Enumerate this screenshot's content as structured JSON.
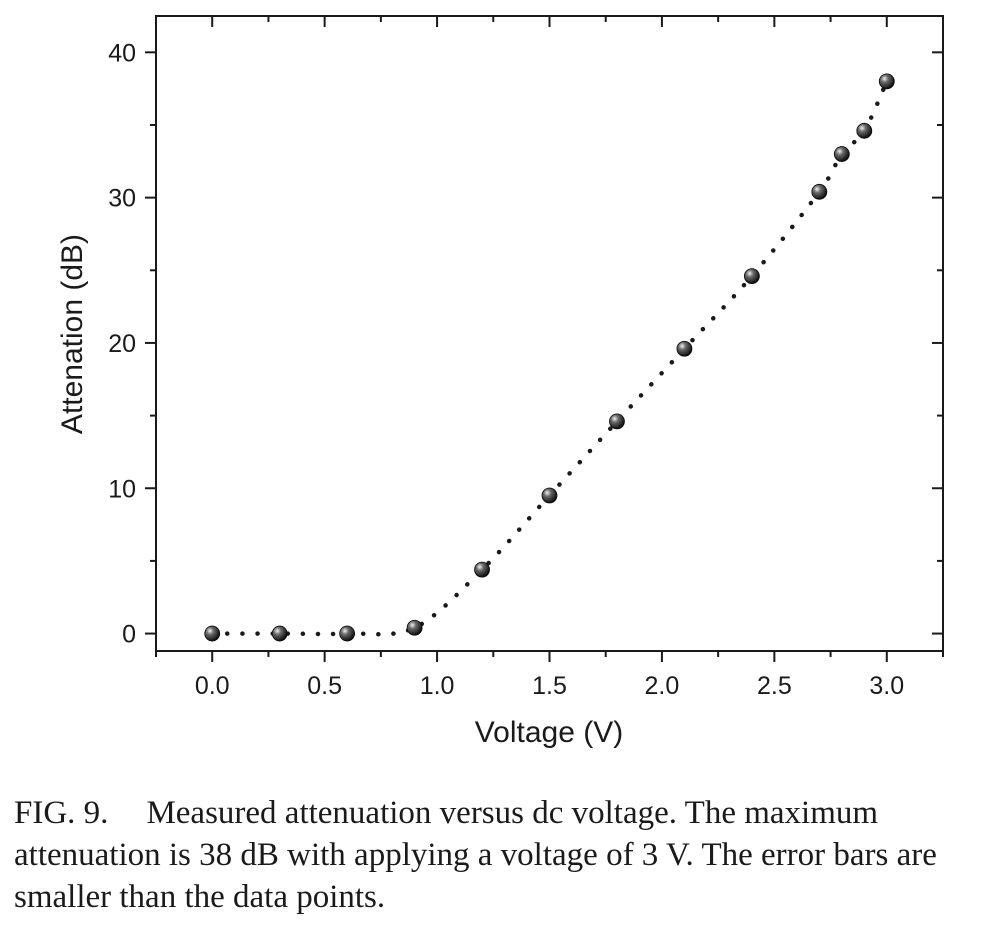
{
  "chart_data": {
    "type": "scatter",
    "xlabel": "Voltage (V)",
    "ylabel": "Attenation (dB)",
    "xlim": [
      -0.25,
      3.25
    ],
    "ylim": [
      -1.2,
      42.5
    ],
    "x_ticks": [
      0.0,
      0.5,
      1.0,
      1.5,
      2.0,
      2.5,
      3.0
    ],
    "x_tick_labels": [
      "0.0",
      "0.5",
      "1.0",
      "1.5",
      "2.0",
      "2.5",
      "3.0"
    ],
    "y_ticks": [
      0,
      10,
      20,
      30,
      40
    ],
    "y_tick_labels": [
      "0",
      "10",
      "20",
      "30",
      "40"
    ],
    "grid": false,
    "legend": "none",
    "series": [
      {
        "x": [
          0.0,
          0.3,
          0.6,
          0.9,
          1.2,
          1.5,
          1.8,
          2.1,
          2.4,
          2.7,
          2.8,
          2.9,
          3.0
        ],
        "y": [
          0.0,
          0.0,
          0.0,
          0.4,
          4.4,
          9.5,
          14.6,
          19.6,
          24.6,
          30.4,
          33.0,
          34.6,
          38.0
        ],
        "marker": "sphere",
        "color": "#1a1a1a",
        "fit_line": "dotted"
      }
    ]
  },
  "caption": {
    "label": "FIG. 9.",
    "text": "Measured attenuation versus dc voltage. The maximum attenuation is 38 dB with applying a voltage of 3 V. The error bars are smaller than the data points."
  }
}
